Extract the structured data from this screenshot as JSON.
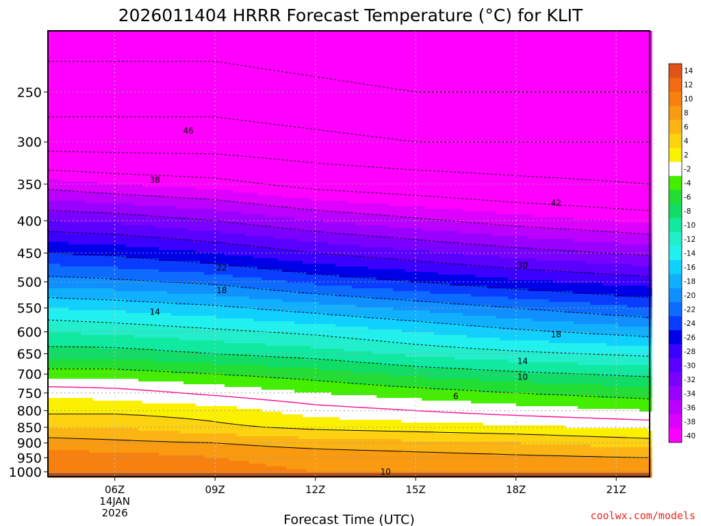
{
  "chart_data": {
    "type": "heatmap",
    "title": "2026011404 HRRR Forecast Temperature (°C) for KLIT",
    "xlabel": "Forecast Time (UTC)",
    "ylabel": "",
    "credit": "coolwx.com/models",
    "x_range_utc_hours": [
      4,
      22
    ],
    "x_ticks": [
      {
        "hour": 6,
        "label": "06Z",
        "sub1": "14JAN",
        "sub2": "2026"
      },
      {
        "hour": 9,
        "label": "09Z",
        "sub1": "",
        "sub2": ""
      },
      {
        "hour": 12,
        "label": "12Z",
        "sub1": "",
        "sub2": ""
      },
      {
        "hour": 15,
        "label": "15Z",
        "sub1": "",
        "sub2": ""
      },
      {
        "hour": 18,
        "label": "18Z",
        "sub1": "",
        "sub2": ""
      },
      {
        "hour": 21,
        "label": "21Z",
        "sub1": "",
        "sub2": ""
      }
    ],
    "y_range_hpa": [
      1018,
      200
    ],
    "y_axis_scale": "log-pressure",
    "y_ticks": [
      250,
      300,
      350,
      400,
      450,
      500,
      550,
      600,
      650,
      700,
      750,
      800,
      850,
      900,
      950,
      1000
    ],
    "ground_level_hpa": 1005,
    "colorbar": {
      "labels": [
        "14",
        "12",
        "10",
        "8",
        "6",
        "4",
        "2",
        "-2",
        "-4",
        "-6",
        "-8",
        "-10",
        "-12",
        "-14",
        "-16",
        "-18",
        "-20",
        "-22",
        "-24",
        "-26",
        "-28",
        "-30",
        "-32",
        "-34",
        "-36",
        "-38",
        "-40"
      ],
      "colors": [
        "#e0541a",
        "#f26a12",
        "#f7800e",
        "#f99a10",
        "#fbb414",
        "#fdd210",
        "#fbf000",
        "#ffffff",
        "#44ee00",
        "#22dd33",
        "#11dd66",
        "#11e8a0",
        "#22eecc",
        "#22f0ee",
        "#10d0ff",
        "#10b0ff",
        "#1090ff",
        "#0d6bff",
        "#0a3cff",
        "#0000e8",
        "#3c00ff",
        "#5a00ff",
        "#7a00ff",
        "#9a00ff",
        "#bb00ff",
        "#dd00ff",
        "#ff00ff"
      ],
      "bins": [
        [
          14,
          99
        ],
        [
          12,
          14
        ],
        [
          10,
          12
        ],
        [
          8,
          10
        ],
        [
          6,
          8
        ],
        [
          4,
          6
        ],
        [
          2,
          4
        ],
        [
          -2,
          2
        ],
        [
          -4,
          -2
        ],
        [
          -6,
          -4
        ],
        [
          -8,
          -6
        ],
        [
          -10,
          -8
        ],
        [
          -12,
          -10
        ],
        [
          -14,
          -12
        ],
        [
          -16,
          -14
        ],
        [
          -18,
          -16
        ],
        [
          -20,
          -18
        ],
        [
          -22,
          -20
        ],
        [
          -24,
          -22
        ],
        [
          -26,
          -24
        ],
        [
          -28,
          -26
        ],
        [
          -30,
          -28
        ],
        [
          -32,
          -30
        ],
        [
          -34,
          -32
        ],
        [
          -36,
          -34
        ],
        [
          -38,
          -36
        ],
        [
          -99,
          -38
        ]
      ]
    },
    "temperature_profiles": [
      {
        "hour": 4,
        "points": [
          [
            1000,
            11
          ],
          [
            950,
            11
          ],
          [
            900,
            9
          ],
          [
            850,
            6
          ],
          [
            800,
            3.5
          ],
          [
            750,
            1.5
          ],
          [
            700,
            -3
          ],
          [
            650,
            -7
          ],
          [
            600,
            -10
          ],
          [
            550,
            -14
          ],
          [
            500,
            -19
          ],
          [
            450,
            -24
          ],
          [
            400,
            -30
          ],
          [
            350,
            -37
          ],
          [
            300,
            -46
          ],
          [
            250,
            -50
          ],
          [
            200,
            -54
          ]
        ]
      },
      {
        "hour": 6,
        "points": [
          [
            1000,
            11
          ],
          [
            950,
            11
          ],
          [
            900,
            8.5
          ],
          [
            850,
            6
          ],
          [
            800,
            3.5
          ],
          [
            750,
            1
          ],
          [
            700,
            -3
          ],
          [
            650,
            -7
          ],
          [
            600,
            -10.5
          ],
          [
            550,
            -14.5
          ],
          [
            500,
            -19.5
          ],
          [
            450,
            -24.5
          ],
          [
            400,
            -30.5
          ],
          [
            350,
            -38
          ],
          [
            300,
            -46
          ],
          [
            250,
            -50
          ],
          [
            200,
            -54
          ]
        ]
      },
      {
        "hour": 9,
        "points": [
          [
            1000,
            10.5
          ],
          [
            950,
            10
          ],
          [
            900,
            8
          ],
          [
            850,
            4.5
          ],
          [
            800,
            3
          ],
          [
            750,
            -0.5
          ],
          [
            700,
            -4
          ],
          [
            650,
            -8
          ],
          [
            600,
            -11.5
          ],
          [
            550,
            -15.5
          ],
          [
            500,
            -20.5
          ],
          [
            450,
            -26
          ],
          [
            400,
            -32
          ],
          [
            350,
            -39
          ],
          [
            300,
            -46
          ],
          [
            250,
            -50
          ],
          [
            200,
            -54
          ]
        ]
      },
      {
        "hour": 12,
        "points": [
          [
            1000,
            10
          ],
          [
            950,
            9.5
          ],
          [
            900,
            7
          ],
          [
            850,
            3.5
          ],
          [
            800,
            1
          ],
          [
            750,
            -2
          ],
          [
            700,
            -5
          ],
          [
            650,
            -9
          ],
          [
            600,
            -12.5
          ],
          [
            550,
            -17
          ],
          [
            500,
            -22.5
          ],
          [
            450,
            -28
          ],
          [
            400,
            -34
          ],
          [
            350,
            -41
          ],
          [
            300,
            -47
          ],
          [
            250,
            -51
          ],
          [
            200,
            -55
          ]
        ]
      },
      {
        "hour": 15,
        "points": [
          [
            1000,
            10
          ],
          [
            950,
            9
          ],
          [
            900,
            6.5
          ],
          [
            850,
            3
          ],
          [
            800,
            0
          ],
          [
            750,
            -3
          ],
          [
            700,
            -6.5
          ],
          [
            650,
            -10.5
          ],
          [
            600,
            -14
          ],
          [
            550,
            -18.5
          ],
          [
            500,
            -24
          ],
          [
            450,
            -29.5
          ],
          [
            400,
            -35.5
          ],
          [
            350,
            -42
          ],
          [
            300,
            -48
          ],
          [
            250,
            -52
          ],
          [
            200,
            -56
          ]
        ]
      },
      {
        "hour": 18,
        "points": [
          [
            1000,
            10
          ],
          [
            950,
            8.5
          ],
          [
            900,
            6
          ],
          [
            850,
            2.5
          ],
          [
            800,
            -1
          ],
          [
            750,
            -4
          ],
          [
            700,
            -7.5
          ],
          [
            650,
            -11.5
          ],
          [
            600,
            -15.5
          ],
          [
            550,
            -20
          ],
          [
            500,
            -25.5
          ],
          [
            450,
            -31
          ],
          [
            400,
            -37
          ],
          [
            350,
            -43
          ],
          [
            300,
            -48
          ],
          [
            250,
            -52
          ],
          [
            200,
            -56
          ]
        ]
      },
      {
        "hour": 22,
        "points": [
          [
            1000,
            10
          ],
          [
            950,
            8
          ],
          [
            900,
            5
          ],
          [
            850,
            1.5
          ],
          [
            800,
            -2
          ],
          [
            750,
            -5
          ],
          [
            700,
            -8.5
          ],
          [
            650,
            -12.5
          ],
          [
            600,
            -17
          ],
          [
            550,
            -22
          ],
          [
            500,
            -27
          ],
          [
            450,
            -32.5
          ],
          [
            400,
            -38.5
          ],
          [
            350,
            -44
          ],
          [
            300,
            -48
          ],
          [
            250,
            -52
          ],
          [
            200,
            -56
          ]
        ]
      }
    ],
    "contour_labels": [
      {
        "hour": 8.2,
        "hpa": 288,
        "text": "46"
      },
      {
        "hour": 7.2,
        "hpa": 345,
        "text": "38"
      },
      {
        "hour": 19.2,
        "hpa": 375,
        "text": "42"
      },
      {
        "hour": 18.2,
        "hpa": 471,
        "text": "30"
      },
      {
        "hour": 9.2,
        "hpa": 475,
        "text": "22"
      },
      {
        "hour": 9.2,
        "hpa": 516,
        "text": "18"
      },
      {
        "hour": 7.2,
        "hpa": 558,
        "text": "14"
      },
      {
        "hour": 19.2,
        "hpa": 606,
        "text": "18"
      },
      {
        "hour": 18.2,
        "hpa": 668,
        "text": "14"
      },
      {
        "hour": 18.2,
        "hpa": 708,
        "text": "10"
      },
      {
        "hour": 16.2,
        "hpa": 759,
        "text": "6"
      },
      {
        "hour": 14.1,
        "hpa": 1000,
        "text": "10"
      }
    ]
  }
}
